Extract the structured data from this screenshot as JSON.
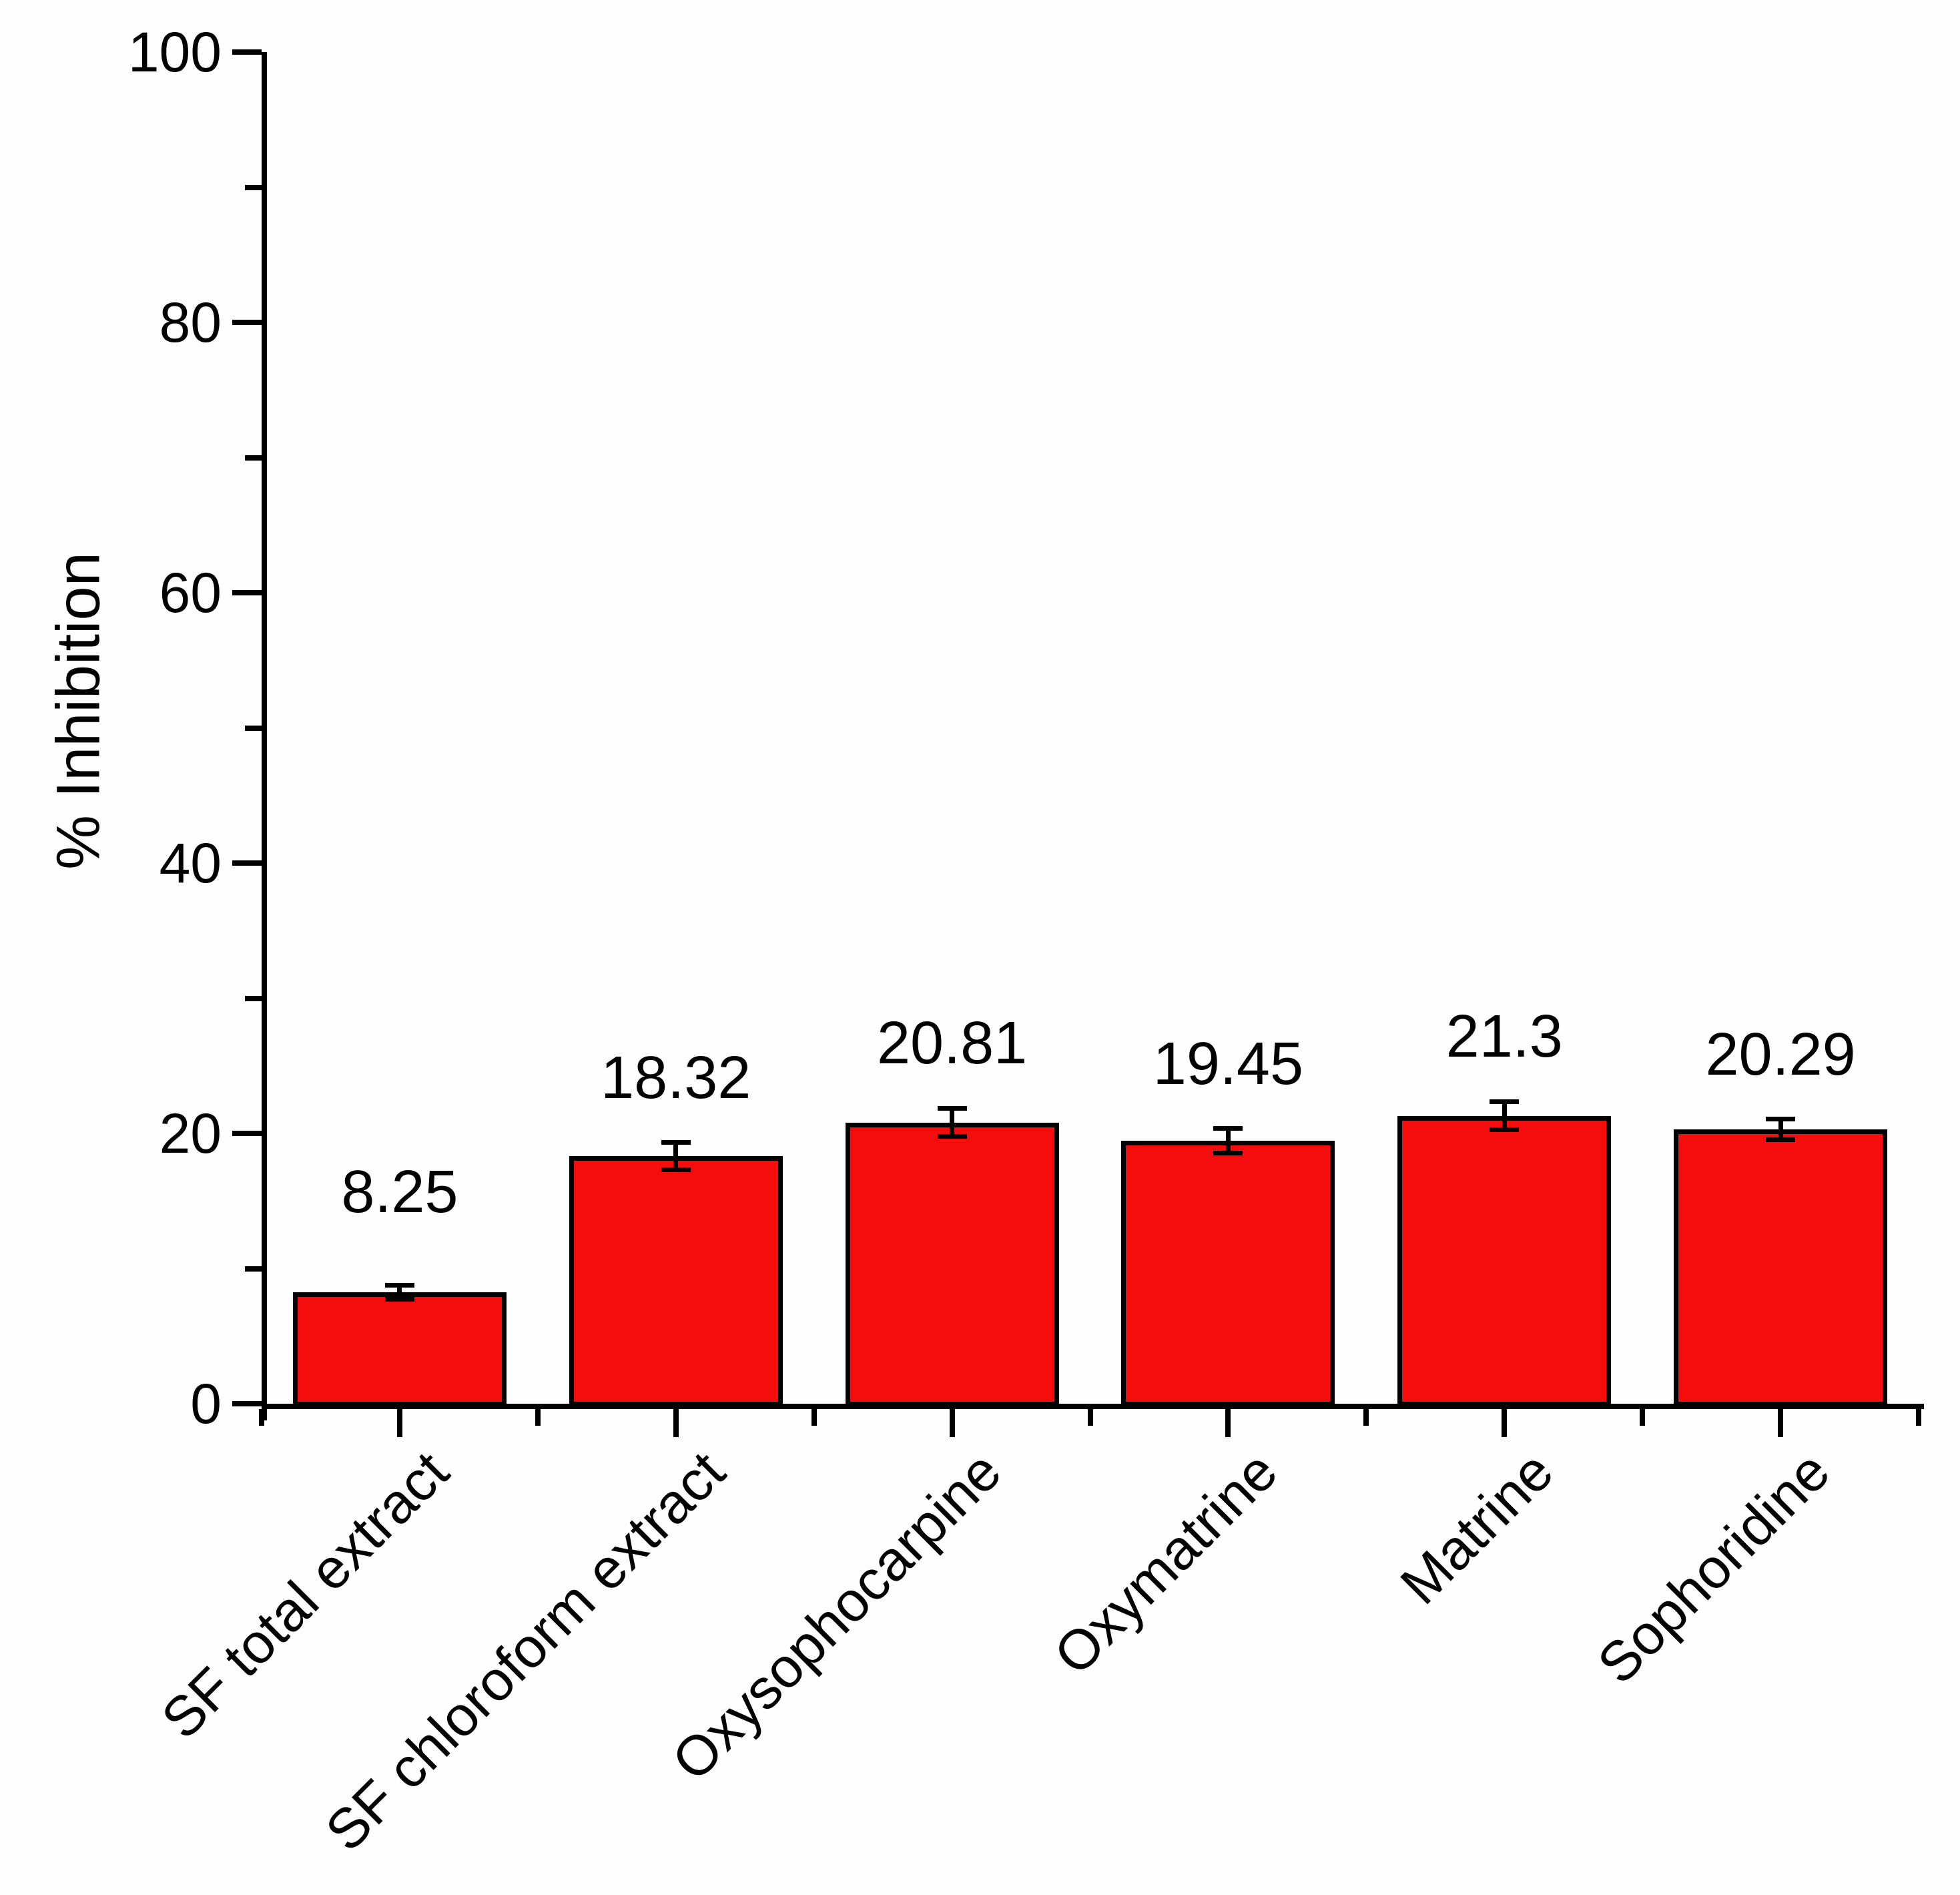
{
  "chart_data": {
    "type": "bar",
    "title": "",
    "xlabel": "",
    "ylabel": "% Inhibition",
    "categories": [
      "SF total extract",
      "SF chloroform extract",
      "Oxysophocarpine",
      "Oxymatrine",
      "Matrine",
      "Sophoridine"
    ],
    "values": [
      8.25,
      18.32,
      20.81,
      19.45,
      21.3,
      20.29
    ],
    "value_labels": [
      "8.25",
      "18.32",
      "20.81",
      "19.45",
      "21.3",
      "20.29"
    ],
    "errors": [
      0.5,
      1.0,
      1.05,
      0.9,
      1.05,
      0.75
    ],
    "ylim": [
      0,
      100
    ],
    "yticks_major": [
      0,
      20,
      40,
      60,
      80,
      100
    ],
    "yticks_minor": [
      10,
      30,
      50,
      70,
      90
    ],
    "bar_fill": "#f50d0d",
    "bar_border": "#000000",
    "axis_color": "#000000",
    "text_color": "#000000",
    "background": "#fefefe",
    "grid": false,
    "legend": null,
    "error_bar_style": "caps above and below, centered on bar top"
  }
}
